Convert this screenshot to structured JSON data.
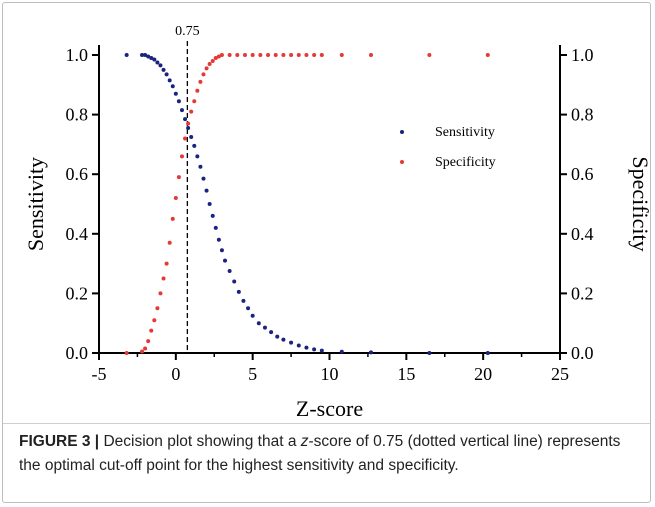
{
  "chart_data": {
    "type": "scatter",
    "title": "",
    "xlabel": "Z-score",
    "ylabel_left": "Sensitivity",
    "ylabel_right": "Specificity",
    "xlim": [
      -5,
      25
    ],
    "ylim": [
      0.0,
      1.0
    ],
    "x_ticks": [
      "-5",
      "0",
      "5",
      "10",
      "15",
      "20",
      "25"
    ],
    "y_ticks": [
      "0.0",
      "0.2",
      "0.4",
      "0.6",
      "0.8",
      "1.0"
    ],
    "grid": false,
    "legend_position": "center-right",
    "cutoff": {
      "x": 0.75,
      "label": "0.75",
      "style": "dashed"
    },
    "series": [
      {
        "name": "Sensitivity",
        "color": "#1a237e",
        "points": [
          [
            -3.2,
            1.0
          ],
          [
            -2.2,
            1.0
          ],
          [
            -2.0,
            1.0
          ],
          [
            -1.8,
            0.995
          ],
          [
            -1.6,
            0.99
          ],
          [
            -1.4,
            0.985
          ],
          [
            -1.2,
            0.975
          ],
          [
            -1.0,
            0.965
          ],
          [
            -0.8,
            0.95
          ],
          [
            -0.6,
            0.935
          ],
          [
            -0.4,
            0.915
          ],
          [
            -0.2,
            0.895
          ],
          [
            0.0,
            0.87
          ],
          [
            0.2,
            0.845
          ],
          [
            0.4,
            0.815
          ],
          [
            0.6,
            0.785
          ],
          [
            0.8,
            0.755
          ],
          [
            1.0,
            0.725
          ],
          [
            1.2,
            0.695
          ],
          [
            1.4,
            0.66
          ],
          [
            1.6,
            0.625
          ],
          [
            1.8,
            0.585
          ],
          [
            2.0,
            0.545
          ],
          [
            2.2,
            0.5
          ],
          [
            2.4,
            0.46
          ],
          [
            2.6,
            0.42
          ],
          [
            2.8,
            0.38
          ],
          [
            3.0,
            0.345
          ],
          [
            3.2,
            0.31
          ],
          [
            3.5,
            0.275
          ],
          [
            3.8,
            0.24
          ],
          [
            4.1,
            0.205
          ],
          [
            4.4,
            0.175
          ],
          [
            4.7,
            0.15
          ],
          [
            5.0,
            0.125
          ],
          [
            5.4,
            0.1
          ],
          [
            5.8,
            0.085
          ],
          [
            6.2,
            0.07
          ],
          [
            6.6,
            0.055
          ],
          [
            7.0,
            0.045
          ],
          [
            7.5,
            0.035
          ],
          [
            8.0,
            0.025
          ],
          [
            8.5,
            0.018
          ],
          [
            9.0,
            0.012
          ],
          [
            9.5,
            0.008
          ],
          [
            10.8,
            0.004
          ],
          [
            12.7,
            0.002
          ],
          [
            16.5,
            0.0
          ],
          [
            20.3,
            0.0
          ]
        ]
      },
      {
        "name": "Specificity",
        "color": "#e53935",
        "points": [
          [
            -3.2,
            0.0
          ],
          [
            -2.2,
            0.005
          ],
          [
            -2.0,
            0.015
          ],
          [
            -1.8,
            0.04
          ],
          [
            -1.6,
            0.075
          ],
          [
            -1.4,
            0.11
          ],
          [
            -1.2,
            0.15
          ],
          [
            -1.0,
            0.2
          ],
          [
            -0.8,
            0.25
          ],
          [
            -0.6,
            0.3
          ],
          [
            -0.4,
            0.37
          ],
          [
            -0.2,
            0.45
          ],
          [
            0.0,
            0.52
          ],
          [
            0.2,
            0.59
          ],
          [
            0.4,
            0.66
          ],
          [
            0.6,
            0.72
          ],
          [
            0.8,
            0.77
          ],
          [
            1.0,
            0.81
          ],
          [
            1.2,
            0.845
          ],
          [
            1.4,
            0.88
          ],
          [
            1.6,
            0.91
          ],
          [
            1.8,
            0.935
          ],
          [
            2.0,
            0.955
          ],
          [
            2.2,
            0.97
          ],
          [
            2.4,
            0.98
          ],
          [
            2.6,
            0.99
          ],
          [
            2.8,
            0.995
          ],
          [
            3.0,
            1.0
          ],
          [
            3.5,
            1.0
          ],
          [
            4.0,
            1.0
          ],
          [
            4.5,
            1.0
          ],
          [
            5.0,
            1.0
          ],
          [
            5.5,
            1.0
          ],
          [
            6.0,
            1.0
          ],
          [
            6.5,
            1.0
          ],
          [
            7.0,
            1.0
          ],
          [
            7.5,
            1.0
          ],
          [
            8.0,
            1.0
          ],
          [
            8.5,
            1.0
          ],
          [
            9.0,
            1.0
          ],
          [
            9.5,
            1.0
          ],
          [
            10.8,
            1.0
          ],
          [
            12.7,
            1.0
          ],
          [
            16.5,
            1.0
          ],
          [
            20.3,
            1.0
          ]
        ]
      }
    ]
  },
  "caption": {
    "label": "FIGURE 3 |",
    "text_before": "Decision plot showing that a ",
    "z_letter": "z",
    "text_after": "-score of 0.75 (dotted vertical line) represents the optimal cut-off point for the highest sensitivity and specificity."
  }
}
